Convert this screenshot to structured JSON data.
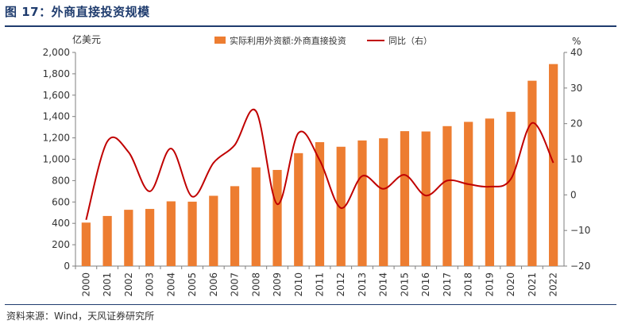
{
  "figure": {
    "title": "图 17：外商直接投资规模",
    "source": "资料来源：Wind，天风证券研究所"
  },
  "chart_data": {
    "type": "bar",
    "left_unit": "亿美元",
    "right_unit": "%",
    "categories": [
      "2000",
      "2001",
      "2002",
      "2003",
      "2004",
      "2005",
      "2006",
      "2007",
      "2008",
      "2009",
      "2010",
      "2011",
      "2012",
      "2013",
      "2014",
      "2015",
      "2016",
      "2017",
      "2018",
      "2019",
      "2020",
      "2021",
      "2022"
    ],
    "series": [
      {
        "name": "实际利用外资额:外商直接投资",
        "type": "bar",
        "axis": "left",
        "color": "#ed7d31",
        "values": [
          407,
          469,
          527,
          535,
          606,
          603,
          658,
          748,
          924,
          900,
          1057,
          1160,
          1117,
          1176,
          1196,
          1263,
          1260,
          1310,
          1350,
          1381,
          1444,
          1735,
          1891
        ]
      },
      {
        "name": "同比（右）",
        "type": "line",
        "axis": "right",
        "color": "#c00000",
        "values": [
          -7,
          15,
          12,
          1,
          13,
          -0.5,
          9,
          14,
          23.5,
          -2.6,
          17.4,
          9.7,
          -3.7,
          5.3,
          1.7,
          5.6,
          -0.2,
          4,
          3,
          2.3,
          4.5,
          20.2,
          9
        ]
      }
    ],
    "ylim_left": [
      0,
      2000
    ],
    "ylim_right": [
      -20,
      40
    ],
    "yticks_left": [
      "0",
      "200",
      "400",
      "600",
      "800",
      "1,000",
      "1,200",
      "1,400",
      "1,600",
      "1,800",
      "2,000"
    ],
    "yticks_right": [
      "−20",
      "−10",
      "0",
      "10",
      "20",
      "30",
      "40"
    ],
    "grid": false,
    "legend_position": "top"
  }
}
